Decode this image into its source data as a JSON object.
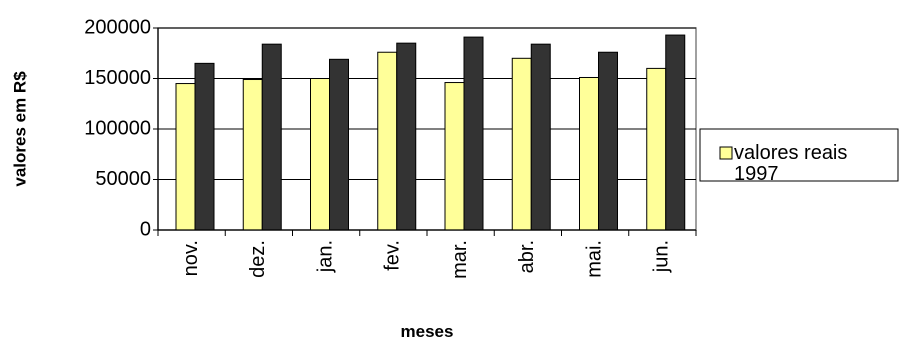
{
  "chart_data": {
    "type": "bar",
    "categories": [
      "nov.",
      "dez.",
      "jan.",
      "fev.",
      "mar.",
      "abr.",
      "mai.",
      "jun."
    ],
    "series": [
      {
        "name": "valores reais 1997",
        "color": "#ffff99",
        "values": [
          145000,
          149000,
          150000,
          176000,
          146000,
          170000,
          151000,
          160000
        ]
      },
      {
        "name": "valores reais",
        "color": "#333333",
        "values": [
          165000,
          184000,
          169000,
          185000,
          191000,
          184000,
          176000,
          193000
        ]
      }
    ],
    "xlabel": "meses",
    "ylabel": "valores em R$",
    "ylim": [
      0,
      200000
    ],
    "yticks": [
      "0",
      "50000",
      "100000",
      "150000",
      "200000"
    ],
    "grid": true,
    "legend_position": "right"
  }
}
